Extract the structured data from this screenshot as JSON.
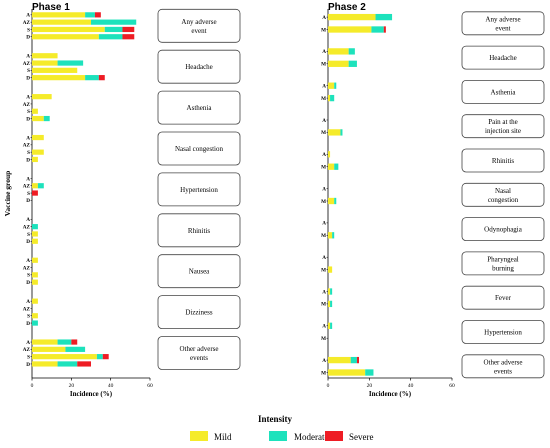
{
  "legend": {
    "title": "Intensity",
    "items": [
      {
        "label": "Mild",
        "color": "#f5eb2a"
      },
      {
        "label": "Moderate",
        "color": "#1de2bc"
      },
      {
        "label": "Severe",
        "color": "#ee1c24"
      }
    ]
  },
  "chart_data": [
    {
      "type": "bar",
      "orientation": "horizontal",
      "stacked": true,
      "title": "Phase 1",
      "xlabel": "Incidence (%)",
      "ylabel": "Vaccine group",
      "xlim": [
        0,
        60
      ],
      "xticks": [
        0,
        20,
        40,
        60
      ],
      "groups": [
        "A",
        "AZ",
        "S",
        "D"
      ],
      "series": [
        "Mild",
        "Moderate",
        "Severe"
      ],
      "categories": [
        {
          "label": "Any adverse event",
          "values": [
            [
              27,
              5,
              3
            ],
            [
              30,
              23,
              0
            ],
            [
              37,
              9,
              6
            ],
            [
              34,
              12,
              6
            ]
          ]
        },
        {
          "label": "Headache",
          "values": [
            [
              13,
              0,
              0
            ],
            [
              13,
              13,
              0
            ],
            [
              23,
              0,
              0
            ],
            [
              27,
              7,
              3
            ]
          ]
        },
        {
          "label": "Asthenia",
          "values": [
            [
              10,
              0,
              0
            ],
            [
              0,
              0,
              0
            ],
            [
              3,
              0,
              0
            ],
            [
              6,
              3,
              0
            ]
          ]
        },
        {
          "label": "Nasal congestion",
          "values": [
            [
              6,
              0,
              0
            ],
            [
              0,
              0,
              0
            ],
            [
              6,
              0,
              0
            ],
            [
              3,
              0,
              0
            ]
          ]
        },
        {
          "label": "Hypertension",
          "values": [
            [
              0,
              0,
              0
            ],
            [
              3,
              3,
              0
            ],
            [
              0,
              0,
              3
            ],
            [
              0,
              0,
              0
            ]
          ]
        },
        {
          "label": "Rhinitis",
          "values": [
            [
              0,
              0,
              0
            ],
            [
              0,
              3,
              0
            ],
            [
              3,
              0,
              0
            ],
            [
              3,
              0,
              0
            ]
          ]
        },
        {
          "label": "Nausea",
          "values": [
            [
              3,
              0,
              0
            ],
            [
              0,
              0,
              0
            ],
            [
              3,
              0,
              0
            ],
            [
              3,
              0,
              0
            ]
          ]
        },
        {
          "label": "Dizziness",
          "values": [
            [
              3,
              0,
              0
            ],
            [
              0,
              0,
              0
            ],
            [
              3,
              0,
              0
            ],
            [
              0,
              3,
              0
            ]
          ]
        },
        {
          "label": "Other adverse events",
          "values": [
            [
              13,
              7,
              3
            ],
            [
              17,
              10,
              0
            ],
            [
              33,
              3,
              3
            ],
            [
              13,
              10,
              7
            ]
          ]
        }
      ]
    },
    {
      "type": "bar",
      "orientation": "horizontal",
      "stacked": true,
      "title": "Phase 2",
      "xlabel": "Incidence (%)",
      "ylabel": "",
      "xlim": [
        0,
        60
      ],
      "xticks": [
        0,
        20,
        40,
        60
      ],
      "groups": [
        "A",
        "M"
      ],
      "series": [
        "Mild",
        "Moderate",
        "Severe"
      ],
      "categories": [
        {
          "label": "Any adverse event",
          "values": [
            [
              23,
              8,
              0
            ],
            [
              21,
              6,
              1
            ]
          ]
        },
        {
          "label": "Headache",
          "values": [
            [
              10,
              3,
              0
            ],
            [
              10,
              4,
              0
            ]
          ]
        },
        {
          "label": "Asthenia",
          "values": [
            [
              3,
              1,
              0
            ],
            [
              1,
              2,
              0
            ]
          ]
        },
        {
          "label": "Pain at the injection site",
          "values": [
            [
              0,
              0,
              0
            ],
            [
              6,
              1,
              0
            ]
          ]
        },
        {
          "label": "Rhinitis",
          "values": [
            [
              1,
              0,
              0
            ],
            [
              3,
              2,
              0
            ]
          ]
        },
        {
          "label": "Nasal congestion",
          "values": [
            [
              0,
              0,
              0
            ],
            [
              3,
              1,
              0
            ]
          ]
        },
        {
          "label": "Odynophagia",
          "values": [
            [
              0,
              0,
              0
            ],
            [
              2,
              1,
              0
            ]
          ]
        },
        {
          "label": "Pharyngeal burning",
          "values": [
            [
              0,
              0,
              0
            ],
            [
              2,
              0,
              0
            ]
          ]
        },
        {
          "label": "Fever",
          "values": [
            [
              1,
              1,
              0
            ],
            [
              1,
              1,
              0
            ]
          ]
        },
        {
          "label": "Hypertension",
          "values": [
            [
              1,
              1,
              0
            ],
            [
              0,
              0,
              0
            ]
          ]
        },
        {
          "label": "Other adverse events",
          "values": [
            [
              11,
              3,
              1
            ],
            [
              18,
              4,
              0
            ]
          ]
        }
      ]
    }
  ]
}
